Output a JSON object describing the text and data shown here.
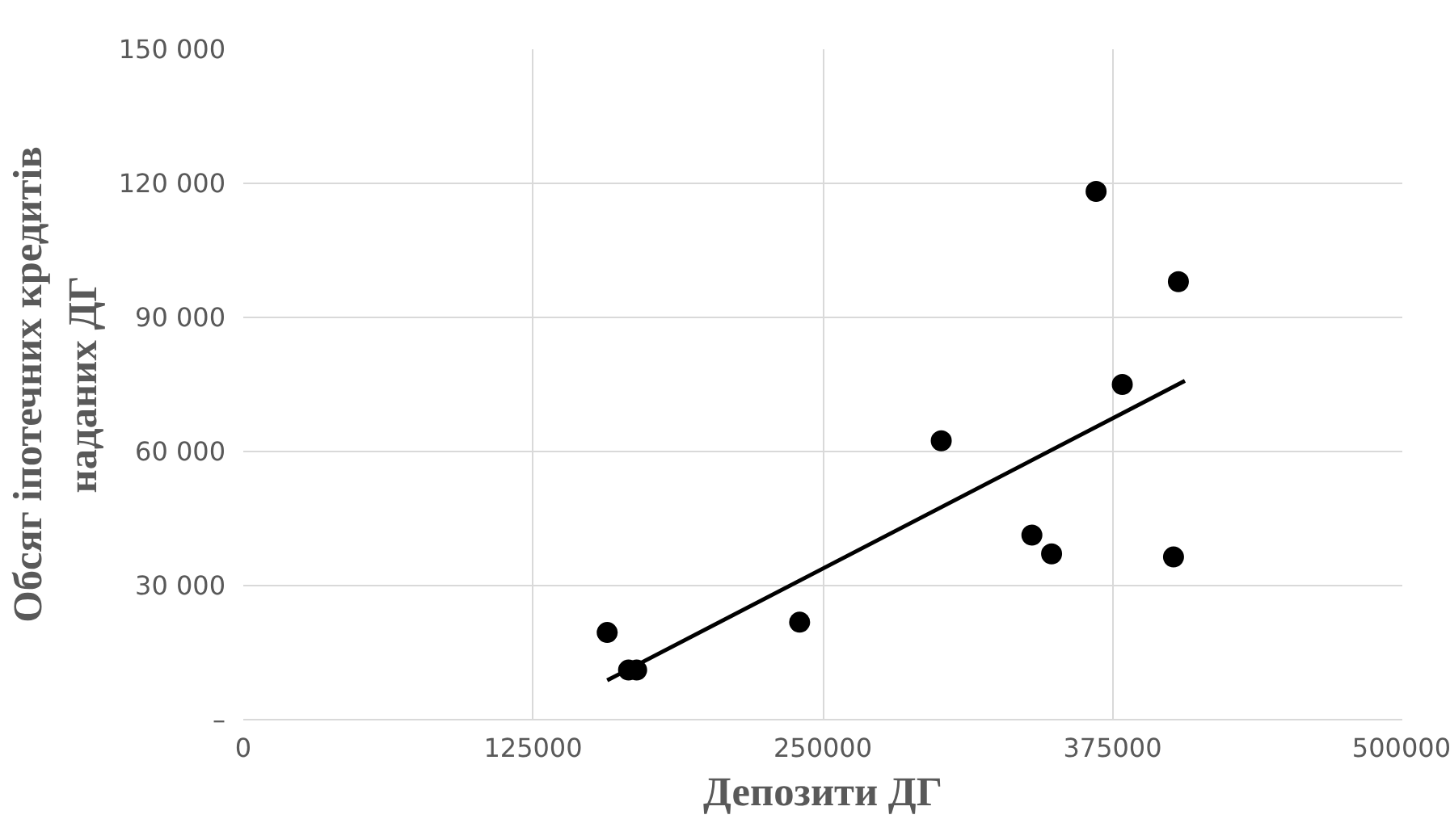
{
  "chart_data": {
    "type": "scatter",
    "xlabel": "Депозити ДГ",
    "ylabel": "Обсяг іпотечних кредитів наданих ДГ",
    "series": [
      {
        "color": "#000000",
        "marker": "circle",
        "x": [
          157000,
          166200,
          169700,
          240000,
          301100,
          340200,
          348700,
          367900,
          379200,
          401300,
          403400
        ],
        "values": [
          19500,
          11100,
          11100,
          21800,
          62400,
          41300,
          37100,
          118200,
          75000,
          36400,
          98000
        ]
      },
      {
        "type": "line",
        "color": "#000000",
        "x": [
          157000,
          406200
        ],
        "values": [
          8800,
          75800
        ]
      }
    ],
    "xlim": [
      0,
      500000
    ],
    "xticks": [
      0,
      125000,
      250000,
      375000,
      500000
    ],
    "ylim": [
      0,
      150000
    ],
    "yticks": [
      {
        "value": 0,
        "label": "–"
      },
      {
        "value": 30000,
        "label": "30 000"
      },
      {
        "value": 60000,
        "label": "60 000"
      },
      {
        "value": 90000,
        "label": "90 000"
      },
      {
        "value": 120000,
        "label": "120 000"
      },
      {
        "value": 150000,
        "label": "150 000"
      }
    ],
    "grid": true
  }
}
